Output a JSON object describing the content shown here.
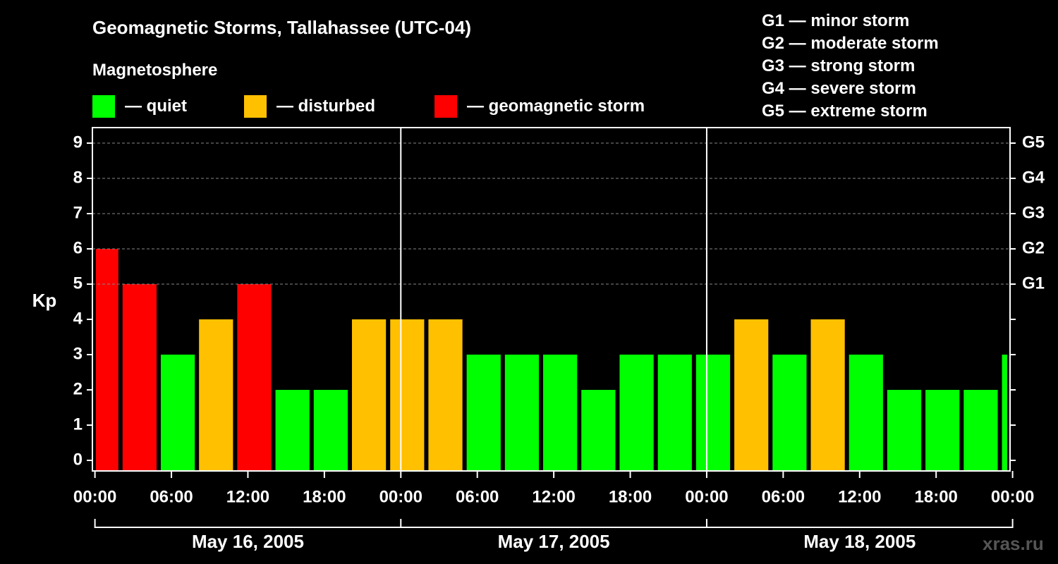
{
  "header": {
    "title": "Geomagnetic Storms, Tallahassee (UTC-04)",
    "magnetosphere_label": "Magnetosphere"
  },
  "legend": [
    {
      "label": "— quiet",
      "color": "#00ff00"
    },
    {
      "label": "— disturbed",
      "color": "#ffc000"
    },
    {
      "label": "— geomagnetic storm",
      "color": "#ff0000"
    }
  ],
  "g_scale": [
    "G1 — minor storm",
    "G2 — moderate storm",
    "G3 — strong storm",
    "G4 — severe storm",
    "G5 — extreme storm"
  ],
  "watermark": "xras.ru",
  "chart_data": {
    "type": "bar",
    "ylabel": "Kp",
    "ylim": [
      0,
      9
    ],
    "y_ticks": [
      "0",
      "1",
      "2",
      "3",
      "4",
      "5",
      "6",
      "7",
      "8",
      "9"
    ],
    "right_ticks": [
      {
        "kp": 5,
        "label": "G1"
      },
      {
        "kp": 6,
        "label": "G2"
      },
      {
        "kp": 7,
        "label": "G3"
      },
      {
        "kp": 8,
        "label": "G4"
      },
      {
        "kp": 9,
        "label": "G5"
      }
    ],
    "x_tick_labels": [
      "00:00",
      "06:00",
      "12:00",
      "18:00",
      "00:00",
      "06:00",
      "12:00",
      "18:00",
      "00:00",
      "06:00",
      "12:00",
      "18:00",
      "00:00"
    ],
    "days": [
      "May 16, 2005",
      "May 17, 2005",
      "May 18, 2005"
    ],
    "interval_hours": 3,
    "first_bar_start_hour": -1,
    "values": [
      6,
      5,
      3,
      4,
      5,
      2,
      2,
      4,
      4,
      4,
      3,
      3,
      3,
      2,
      3,
      3,
      3,
      4,
      3,
      4,
      3,
      2,
      2,
      2,
      3
    ],
    "thresholds": {
      "quiet_below": 4,
      "storm_from": 5
    },
    "colors": {
      "quiet": "#00ff00",
      "disturbed": "#ffc000",
      "storm": "#ff0000",
      "grid": "#888888",
      "axis": "#ffffff"
    },
    "grid": true
  }
}
